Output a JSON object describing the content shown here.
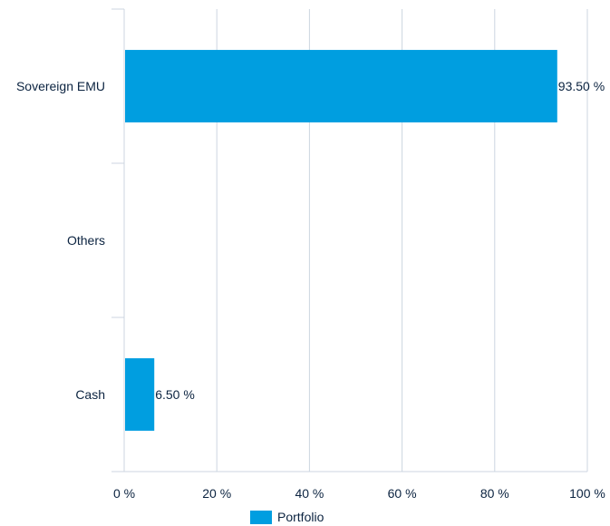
{
  "chart_data": {
    "type": "bar",
    "orientation": "horizontal",
    "categories": [
      "Sovereign EMU",
      "Others",
      "Cash"
    ],
    "series": [
      {
        "name": "Portfolio",
        "values": [
          93.5,
          null,
          6.5
        ],
        "labels": [
          "93.50 %",
          "",
          "6.50 %"
        ]
      }
    ],
    "x_ticks": [
      "0 %",
      "20 %",
      "40 %",
      "60 %",
      "80 %",
      "100 %"
    ],
    "xlim": [
      0,
      100
    ],
    "grid": true,
    "legend": {
      "position": "bottom-center",
      "items": [
        "Portfolio"
      ]
    },
    "colors": {
      "bar": "#009ee0",
      "grid": "#ccd6e0",
      "text": "#0b2340"
    }
  }
}
